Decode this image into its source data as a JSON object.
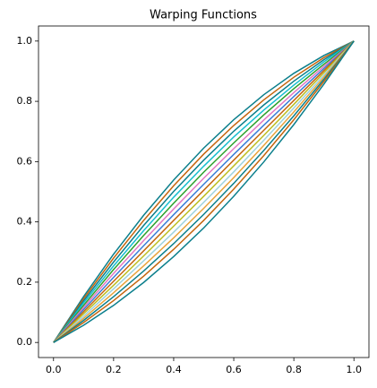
{
  "chart_data": {
    "type": "line",
    "title": "Warping Functions",
    "x": [
      0,
      0.1,
      0.2,
      0.3,
      0.4,
      0.5,
      0.6,
      0.7,
      0.8,
      0.9,
      1
    ],
    "xlim": [
      -0.05,
      1.05
    ],
    "ylim": [
      -0.05,
      1.05
    ],
    "xticks": [
      {
        "value": 0,
        "label": "0.0"
      },
      0.2,
      0.4,
      0.6,
      0.8,
      {
        "value": 1,
        "label": "1.0"
      }
    ],
    "yticks": [
      {
        "value": 0,
        "label": "0.0"
      },
      0.2,
      0.4,
      0.6,
      0.8,
      {
        "value": 1,
        "label": "1.0"
      }
    ],
    "grid": false,
    "series": [
      {
        "color": "#0b7f8c",
        "values": [
          0,
          0.152,
          0.293,
          0.422,
          0.539,
          0.645,
          0.739,
          0.822,
          0.893,
          0.952,
          1
        ]
      },
      {
        "color": "#c4650e",
        "values": [
          0,
          0.145,
          0.28,
          0.405,
          0.52,
          0.625,
          0.72,
          0.805,
          0.88,
          0.945,
          1
        ]
      },
      {
        "color": "#0b7f8c",
        "values": [
          0,
          0.138,
          0.267,
          0.388,
          0.501,
          0.605,
          0.701,
          0.788,
          0.867,
          0.938,
          1
        ]
      },
      {
        "color": "#17becf",
        "values": [
          0,
          0.131,
          0.254,
          0.371,
          0.482,
          0.585,
          0.682,
          0.771,
          0.854,
          0.931,
          1
        ]
      },
      {
        "color": "#2ca02c",
        "values": [
          0,
          0.123,
          0.242,
          0.355,
          0.462,
          0.565,
          0.662,
          0.755,
          0.842,
          0.923,
          1
        ]
      },
      {
        "color": "#e377c2",
        "values": [
          0,
          0.116,
          0.229,
          0.338,
          0.443,
          0.545,
          0.643,
          0.738,
          0.829,
          0.916,
          1
        ]
      },
      {
        "color": "#3b7dd8",
        "values": [
          0,
          0.109,
          0.216,
          0.321,
          0.424,
          0.525,
          0.624,
          0.721,
          0.816,
          0.909,
          1
        ]
      },
      {
        "color": "#c4650e",
        "values": [
          0,
          0.102,
          0.203,
          0.304,
          0.405,
          0.505,
          0.605,
          0.704,
          0.803,
          0.902,
          1
        ]
      },
      {
        "color": "#bcbd22",
        "values": [
          0,
          0.095,
          0.19,
          0.287,
          0.386,
          0.485,
          0.586,
          0.687,
          0.79,
          0.895,
          1
        ]
      },
      {
        "color": "#9ed2de",
        "values": [
          0,
          0.087,
          0.178,
          0.271,
          0.366,
          0.465,
          0.566,
          0.671,
          0.778,
          0.887,
          1
        ]
      },
      {
        "color": "#e8a33c",
        "values": [
          0,
          0.08,
          0.165,
          0.254,
          0.347,
          0.445,
          0.547,
          0.654,
          0.765,
          0.88,
          1
        ]
      },
      {
        "color": "#0b7f8c",
        "values": [
          0,
          0.073,
          0.152,
          0.237,
          0.328,
          0.425,
          0.528,
          0.637,
          0.752,
          0.873,
          1
        ]
      },
      {
        "color": "#c4650e",
        "values": [
          0,
          0.066,
          0.139,
          0.22,
          0.309,
          0.405,
          0.509,
          0.62,
          0.739,
          0.866,
          1
        ]
      },
      {
        "color": "#0b7f8c",
        "values": [
          0,
          0.057,
          0.123,
          0.199,
          0.285,
          0.38,
          0.485,
          0.599,
          0.723,
          0.857,
          1
        ]
      }
    ]
  }
}
